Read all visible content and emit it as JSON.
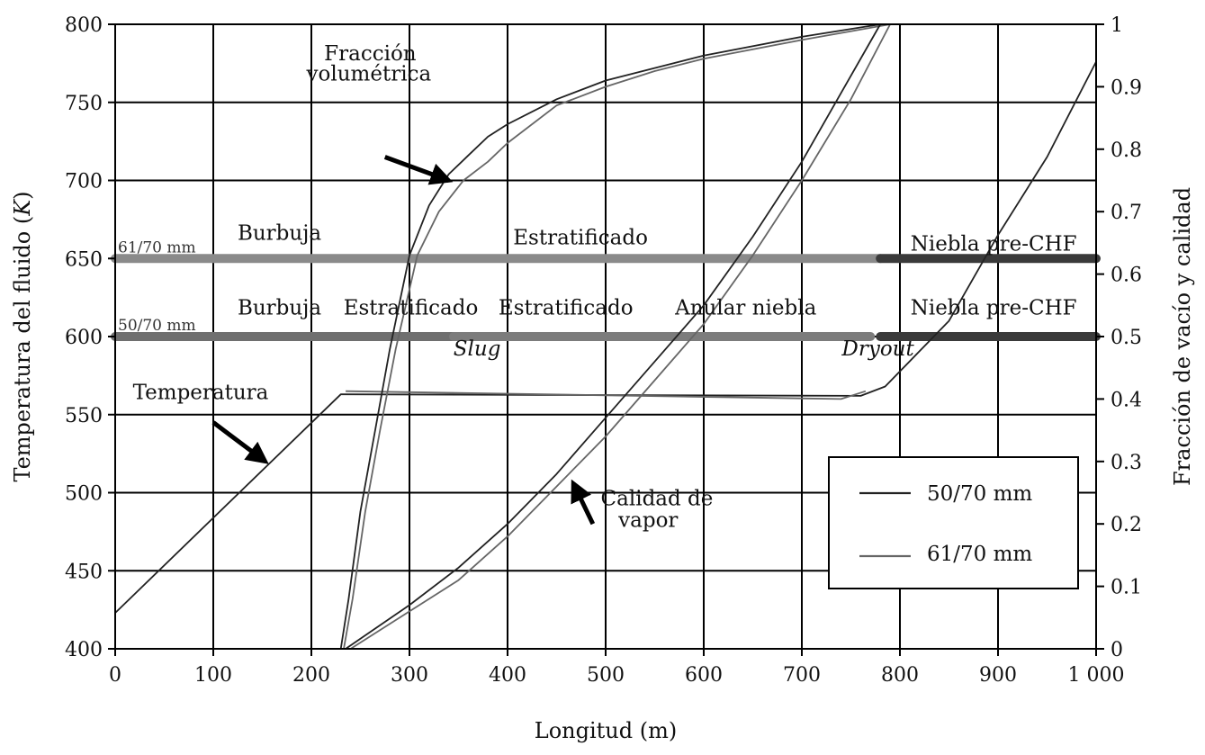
{
  "chart_data": {
    "type": "line",
    "title": "",
    "xlabel": "Longitud (m)",
    "ylabel_left": "Temperatura del fluido (K)",
    "ylabel_left_parts": [
      "Temperatura del fluido (",
      "K",
      ")"
    ],
    "ylabel_right": "Fracción de vacío y calidad",
    "xlim": [
      0,
      1000
    ],
    "ylim_left": [
      400,
      800
    ],
    "ylim_right": [
      0,
      1
    ],
    "grid": true,
    "x_ticks": [
      {
        "v": 0,
        "label": "0"
      },
      {
        "v": 100,
        "label": "100"
      },
      {
        "v": 200,
        "label": "200"
      },
      {
        "v": 300,
        "label": "300"
      },
      {
        "v": 400,
        "label": "400"
      },
      {
        "v": 500,
        "label": "500"
      },
      {
        "v": 600,
        "label": "600"
      },
      {
        "v": 700,
        "label": "700"
      },
      {
        "v": 800,
        "label": "800"
      },
      {
        "v": 900,
        "label": "900"
      },
      {
        "v": 1000,
        "label": "1 000"
      }
    ],
    "y_left_ticks": [
      {
        "v": 400,
        "label": "400"
      },
      {
        "v": 450,
        "label": "450"
      },
      {
        "v": 500,
        "label": "500"
      },
      {
        "v": 550,
        "label": "550"
      },
      {
        "v": 600,
        "label": "600"
      },
      {
        "v": 650,
        "label": "650"
      },
      {
        "v": 700,
        "label": "700"
      },
      {
        "v": 750,
        "label": "750"
      },
      {
        "v": 800,
        "label": "800"
      }
    ],
    "y_right_ticks": [
      {
        "v": 0,
        "label": "0"
      },
      {
        "v": 0.1,
        "label": "0.1"
      },
      {
        "v": 0.2,
        "label": "0.2"
      },
      {
        "v": 0.3,
        "label": "0.3"
      },
      {
        "v": 0.4,
        "label": "0.4"
      },
      {
        "v": 0.5,
        "label": "0.5"
      },
      {
        "v": 0.6,
        "label": "0.6"
      },
      {
        "v": 0.7,
        "label": "0.7"
      },
      {
        "v": 0.8,
        "label": "0.8"
      },
      {
        "v": 0.9,
        "label": "0.9"
      },
      {
        "v": 1,
        "label": "1"
      }
    ],
    "legend": {
      "placement": "bottom-right",
      "entries": [
        {
          "name": "50/70 mm",
          "color": "#222222"
        },
        {
          "name": "61/70 mm",
          "color": "#666666"
        }
      ]
    },
    "series": [
      {
        "name": "Temperatura 50/70 mm",
        "axis": "left",
        "color": "#222222",
        "points": [
          [
            0,
            423
          ],
          [
            230,
            563
          ],
          [
            760,
            562
          ],
          [
            785,
            568
          ],
          [
            850,
            610
          ],
          [
            900,
            665
          ],
          [
            950,
            715
          ],
          [
            1000,
            776
          ]
        ]
      },
      {
        "name": "Temperatura 61/70 mm",
        "axis": "left",
        "color": "#666666",
        "points": [
          [
            235,
            565
          ],
          [
            740,
            560
          ],
          [
            765,
            565
          ]
        ]
      },
      {
        "name": "Fracción volumétrica 50/70 mm",
        "axis": "right",
        "color": "#222222",
        "points": [
          [
            0,
            0
          ],
          [
            230,
            0
          ],
          [
            238,
            0.08
          ],
          [
            250,
            0.22
          ],
          [
            265,
            0.35
          ],
          [
            280,
            0.48
          ],
          [
            300,
            0.63
          ],
          [
            320,
            0.71
          ],
          [
            340,
            0.76
          ],
          [
            360,
            0.79
          ],
          [
            380,
            0.82
          ],
          [
            400,
            0.84
          ],
          [
            450,
            0.88
          ],
          [
            500,
            0.91
          ],
          [
            550,
            0.93
          ],
          [
            600,
            0.95
          ],
          [
            700,
            0.98
          ],
          [
            780,
            1
          ]
        ]
      },
      {
        "name": "Fracción volumétrica 61/70 mm",
        "axis": "right",
        "color": "#666666",
        "points": [
          [
            233,
            0
          ],
          [
            242,
            0.08
          ],
          [
            255,
            0.22
          ],
          [
            270,
            0.35
          ],
          [
            286,
            0.48
          ],
          [
            308,
            0.63
          ],
          [
            330,
            0.7
          ],
          [
            355,
            0.75
          ],
          [
            380,
            0.78
          ],
          [
            400,
            0.81
          ],
          [
            450,
            0.87
          ],
          [
            500,
            0.9
          ],
          [
            550,
            0.925
          ],
          [
            600,
            0.945
          ],
          [
            700,
            0.975
          ],
          [
            790,
            1
          ]
        ]
      },
      {
        "name": "Calidad de vapor 50/70 mm",
        "axis": "right",
        "color": "#222222",
        "points": [
          [
            235,
            0
          ],
          [
            300,
            0.07
          ],
          [
            350,
            0.13
          ],
          [
            400,
            0.2
          ],
          [
            450,
            0.28
          ],
          [
            500,
            0.37
          ],
          [
            550,
            0.46
          ],
          [
            600,
            0.55
          ],
          [
            650,
            0.66
          ],
          [
            700,
            0.78
          ],
          [
            740,
            0.89
          ],
          [
            780,
            1
          ]
        ]
      },
      {
        "name": "Calidad de vapor 61/70 mm",
        "axis": "right",
        "color": "#666666",
        "points": [
          [
            240,
            0
          ],
          [
            300,
            0.06
          ],
          [
            350,
            0.11
          ],
          [
            400,
            0.18
          ],
          [
            450,
            0.26
          ],
          [
            500,
            0.34
          ],
          [
            550,
            0.43
          ],
          [
            600,
            0.52
          ],
          [
            650,
            0.63
          ],
          [
            700,
            0.75
          ],
          [
            750,
            0.88
          ],
          [
            790,
            1
          ]
        ]
      }
    ],
    "flow_bands": [
      {
        "level_K": 650,
        "segments": [
          [
            0,
            780,
            "#8a8a8a"
          ],
          [
            780,
            1000,
            "#3a3a3a"
          ]
        ]
      },
      {
        "level_K": 600,
        "segments": [
          [
            0,
            345,
            "#6f6f6f"
          ],
          [
            345,
            770,
            "#7c7c7c"
          ],
          [
            780,
            1000,
            "#3a3a3a"
          ]
        ]
      }
    ],
    "band_labels": [
      {
        "text": "61/70 mm",
        "x": 0,
        "y": 654,
        "style": "small"
      },
      {
        "text": "50/70 mm",
        "x": 0,
        "y": 604,
        "style": "small"
      },
      {
        "text": "Burbuja",
        "x": 122,
        "y": 662,
        "style": "ann"
      },
      {
        "text": "Estratificado",
        "x": 403,
        "y": 659,
        "style": "ann"
      },
      {
        "text": "Niebla pre-CHF",
        "x": 808,
        "y": 655,
        "style": "ann"
      },
      {
        "text": "Burbuja",
        "x": 122,
        "y": 614,
        "style": "ann"
      },
      {
        "text": "Estratificado",
        "x": 230,
        "y": 614,
        "style": "ann"
      },
      {
        "text": "Estratificado",
        "x": 388,
        "y": 614,
        "style": "ann"
      },
      {
        "text": "Anular niebla",
        "x": 568,
        "y": 614,
        "style": "ann"
      },
      {
        "text": "Niebla pre-CHF",
        "x": 808,
        "y": 614,
        "style": "ann"
      },
      {
        "text": "Slug",
        "x": 342,
        "y": 588,
        "style": "ann-it"
      },
      {
        "text": "Dryout",
        "x": 738,
        "y": 588,
        "style": "ann-it"
      }
    ],
    "annotations": [
      {
        "text": "Fracción",
        "x": 213,
        "y": 777,
        "arrow": [
          [
            275,
            715
          ],
          [
            340,
            700
          ]
        ]
      },
      {
        "text": "volumétrica",
        "x": 195,
        "y": 764,
        "arrow": null
      },
      {
        "text": "Temperatura",
        "x": 18,
        "y": 560,
        "arrow": [
          [
            100,
            545
          ],
          [
            153,
            520
          ]
        ]
      },
      {
        "text": "Calidad de",
        "x": 495,
        "y": 492,
        "arrow": [
          [
            487,
            480
          ],
          [
            467,
            506
          ]
        ]
      },
      {
        "text": "vapor",
        "x": 513,
        "y": 478,
        "arrow": null
      }
    ]
  }
}
